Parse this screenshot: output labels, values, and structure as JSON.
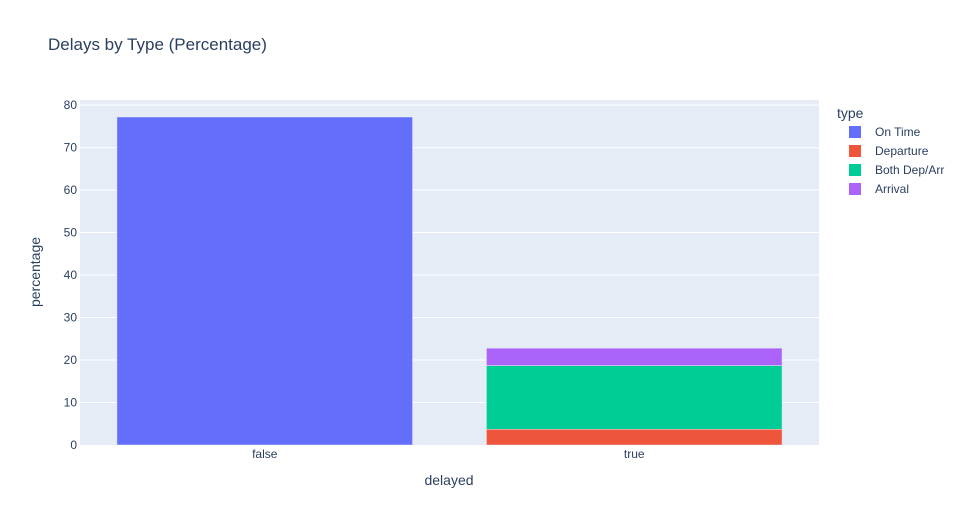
{
  "chart_data": {
    "type": "bar",
    "barmode": "stack",
    "title": "Delays by Type (Percentage)",
    "xlabel": "delayed",
    "ylabel": "percentage",
    "categories": [
      "false",
      "true"
    ],
    "ylim": [
      0,
      81.2
    ],
    "yticks": [
      0,
      10,
      20,
      30,
      40,
      50,
      60,
      70,
      80
    ],
    "grid": true,
    "legend_title": "type",
    "legend_position": "right",
    "series": [
      {
        "name": "On Time",
        "color": "#636efa",
        "values": [
          77.2,
          0
        ]
      },
      {
        "name": "Departure",
        "color": "#ef553b",
        "values": [
          0,
          3.7
        ]
      },
      {
        "name": "Both Dep/Arr",
        "color": "#00cc96",
        "values": [
          0,
          15.0
        ]
      },
      {
        "name": "Arrival",
        "color": "#ab63fa",
        "values": [
          0,
          4.1
        ]
      }
    ]
  }
}
